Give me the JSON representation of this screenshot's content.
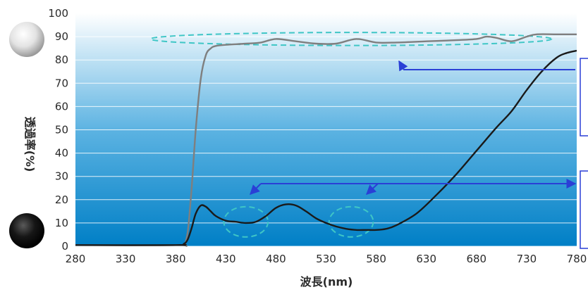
{
  "chart_data": {
    "type": "line",
    "title": "",
    "xlabel": "波長(nm)",
    "ylabel": "透過率(%)",
    "xlim": [
      280,
      780
    ],
    "ylim": [
      0,
      100
    ],
    "xticks": [
      "280",
      "330",
      "380",
      "430",
      "480",
      "530",
      "580",
      "630",
      "680",
      "730",
      "780"
    ],
    "yticks": [
      "0",
      "10",
      "20",
      "30",
      "40",
      "50",
      "60",
      "70",
      "80",
      "90",
      "100"
    ],
    "grid": true,
    "legend": "none",
    "series": [
      {
        "color": "#7f7f7f",
        "marker": "white-sphere",
        "x": [
          280,
          380,
          390,
          395,
          400,
          405,
          410,
          415,
          420,
          430,
          450,
          465,
          480,
          500,
          520,
          540,
          560,
          580,
          600,
          630,
          660,
          680,
          690,
          700,
          715,
          730,
          740,
          760,
          780
        ],
        "y": [
          0.5,
          0.5,
          2,
          20,
          50,
          72,
          82,
          85,
          86,
          86.5,
          87,
          87.5,
          89,
          88,
          87,
          87,
          89,
          87.5,
          87.5,
          88,
          88.5,
          89,
          90,
          89.5,
          88,
          90,
          91,
          91,
          91
        ]
      },
      {
        "color": "#1a1a1a",
        "marker": "black-sphere",
        "x": [
          280,
          380,
          388,
          392,
          396,
          400,
          405,
          410,
          415,
          420,
          430,
          440,
          450,
          460,
          470,
          480,
          490,
          500,
          510,
          520,
          530,
          540,
          550,
          560,
          570,
          580,
          590,
          600,
          620,
          640,
          660,
          680,
          700,
          715,
          730,
          745,
          760,
          770,
          780
        ],
        "y": [
          0.5,
          0.5,
          1,
          3,
          8,
          14,
          17.5,
          17,
          15,
          13,
          11,
          10.5,
          10,
          10.5,
          13,
          16.5,
          18,
          17.5,
          15,
          12,
          10,
          8.5,
          7.5,
          7,
          7,
          7,
          7.5,
          9,
          14,
          22,
          31,
          41,
          51,
          58,
          67,
          75,
          81,
          83,
          84
        ]
      }
    ],
    "annotations": [
      {
        "style": "dashed-ellipse",
        "color": "#3fc6c6",
        "x_center": 555,
        "y_center": 89,
        "rx": 200,
        "ry": 2.8
      },
      {
        "style": "dashed-ellipse",
        "color": "#3fc6c6",
        "x_center": 450,
        "y_center": 10.5,
        "rx": 22,
        "ry": 6.5
      },
      {
        "style": "dashed-ellipse",
        "color": "#3fc6c6",
        "x_center": 555,
        "y_center": 10.5,
        "rx": 22,
        "ry": 6.5
      },
      {
        "style": "callout-box",
        "color": "#2a3fd6"
      },
      {
        "style": "callout-box",
        "color": "#2a3fd6"
      }
    ]
  }
}
